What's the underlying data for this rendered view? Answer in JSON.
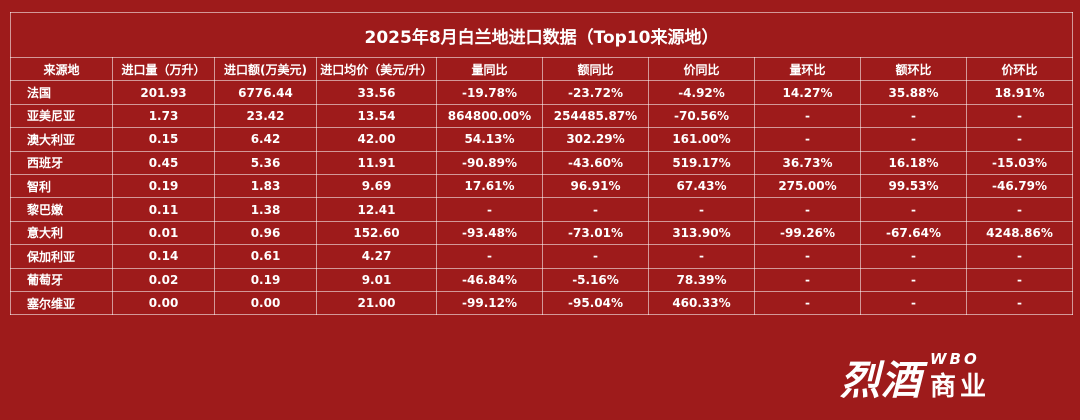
{
  "table": {
    "title": "2025年8月白兰地进口数据（Top10来源地）",
    "headers": [
      "来源地",
      "进口量（万升）",
      "进口额(万美元)",
      "进口均价（美元/升）",
      "量同比",
      "额同比",
      "价同比",
      "量环比",
      "额环比",
      "价环比"
    ],
    "rows": [
      [
        "法国",
        "201.93",
        "6776.44",
        "33.56",
        "-19.78%",
        "-23.72%",
        "-4.92%",
        "14.27%",
        "35.88%",
        "18.91%"
      ],
      [
        "亚美尼亚",
        "1.73",
        "23.42",
        "13.54",
        "864800.00%",
        "254485.87%",
        "-70.56%",
        "-",
        "-",
        "-"
      ],
      [
        "澳大利亚",
        "0.15",
        "6.42",
        "42.00",
        "54.13%",
        "302.29%",
        "161.00%",
        "-",
        "-",
        "-"
      ],
      [
        "西班牙",
        "0.45",
        "5.36",
        "11.91",
        "-90.89%",
        "-43.60%",
        "519.17%",
        "36.73%",
        "16.18%",
        "-15.03%"
      ],
      [
        "智利",
        "0.19",
        "1.83",
        "9.69",
        "17.61%",
        "96.91%",
        "67.43%",
        "275.00%",
        "99.53%",
        "-46.79%"
      ],
      [
        "黎巴嫩",
        "0.11",
        "1.38",
        "12.41",
        "-",
        "-",
        "-",
        "-",
        "-",
        "-"
      ],
      [
        "意大利",
        "0.01",
        "0.96",
        "152.60",
        "-93.48%",
        "-73.01%",
        "313.90%",
        "-99.26%",
        "-67.64%",
        "4248.86%"
      ],
      [
        "保加利亚",
        "0.14",
        "0.61",
        "4.27",
        "-",
        "-",
        "-",
        "-",
        "-",
        "-"
      ],
      [
        "葡萄牙",
        "0.02",
        "0.19",
        "9.01",
        "-46.84%",
        "-5.16%",
        "78.39%",
        "-",
        "-",
        "-"
      ],
      [
        "塞尔维亚",
        "0.00",
        "0.00",
        "21.00",
        "-99.12%",
        "-95.04%",
        "460.33%",
        "-",
        "-",
        "-"
      ]
    ]
  },
  "logo": {
    "cn": "烈酒",
    "wbo": "WBO",
    "biz": "商业"
  },
  "colors": {
    "background": "#9e1b1b",
    "text": "#ffffff"
  }
}
